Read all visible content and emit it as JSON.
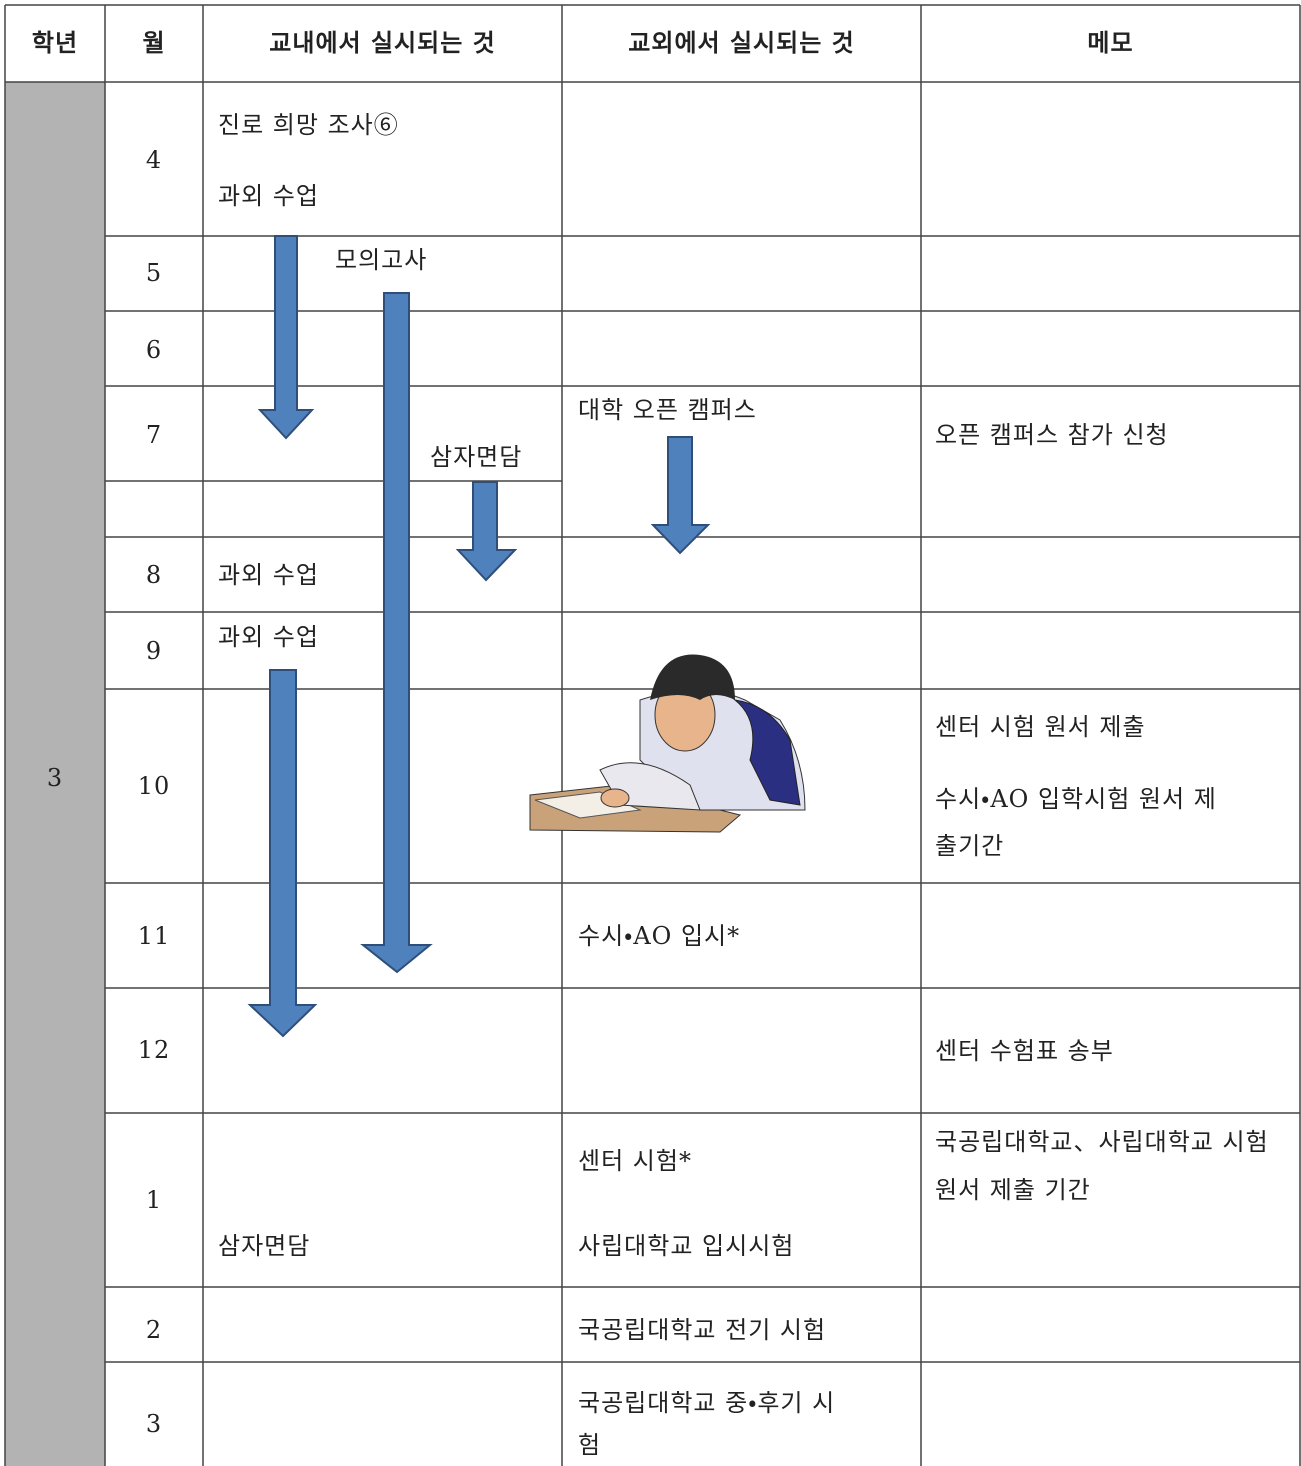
{
  "header": [
    "학년",
    "월",
    "교내에서 실시되는 것",
    "교외에서 실시되는 것",
    "메모"
  ],
  "grade": "3",
  "rows": [
    {
      "month": "4",
      "in_school": [
        "진로 희망 조사⑥",
        "과외 수업"
      ]
    },
    {
      "month": "5",
      "in_school": [
        "모의고사"
      ]
    },
    {
      "month": "6"
    },
    {
      "month": "7",
      "in_school": [
        "삼자면담"
      ],
      "off_school": [
        "대학 오픈 캠퍼스"
      ],
      "memo": [
        "오픈 캠퍼스 참가 신청"
      ]
    },
    {
      "month": "8",
      "in_school": [
        "과외 수업"
      ]
    },
    {
      "month": "9",
      "in_school": [
        "과외 수업"
      ]
    },
    {
      "month": "10",
      "memo": [
        "센터 시험 원서 제출",
        "수시・AO 입학시험 원서 제출기간"
      ]
    },
    {
      "month": "11",
      "off_school": [
        "수시・AO 입시*"
      ]
    },
    {
      "month": "12",
      "memo": [
        "센터 수험표 송부"
      ]
    },
    {
      "month": "1",
      "in_school": [
        "삼자면담"
      ],
      "off_school": [
        "센터 시험*",
        "사립대학교 입시시험"
      ],
      "memo": [
        "국공립대학교、사립대학교 시험 원서 제출 기간"
      ]
    },
    {
      "month": "2",
      "off_school": [
        "국공립대학교 전기 시험"
      ]
    },
    {
      "month": "3",
      "off_school": [
        "국공립대학교 중・후기 시험"
      ]
    }
  ]
}
